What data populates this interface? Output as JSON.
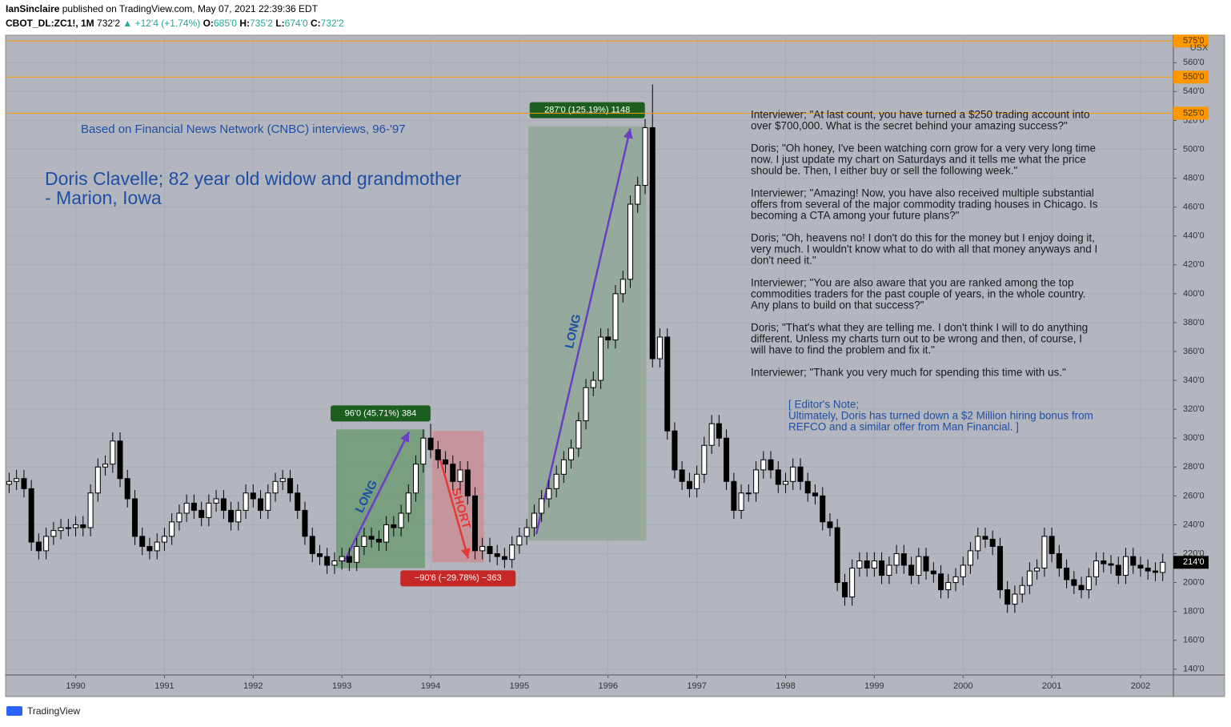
{
  "header": {
    "author": "IanSinclaire",
    "published": "published on TradingView.com, May 07, 2021 22:39:36 EDT",
    "symbol": "CBOT_DL:ZC1!, 1M",
    "price": "732'2",
    "arrow": "▲",
    "change": "+12'4 (+1.74%)",
    "o_key": "O:",
    "o": "685'0",
    "h_key": "H:",
    "h": "735'2",
    "l_key": "L:",
    "l": "674'0",
    "c_key": "C:",
    "c": "732'2"
  },
  "chart_data": {
    "type": "candlestick",
    "currency": "USX",
    "x": [
      1989.25,
      1989.333,
      1989.417,
      1989.5,
      1989.583,
      1989.667,
      1989.75,
      1989.833,
      1989.917,
      1990,
      1990.083,
      1990.167,
      1990.25,
      1990.333,
      1990.417,
      1990.5,
      1990.583,
      1990.667,
      1990.75,
      1990.833,
      1990.917,
      1991,
      1991.083,
      1991.167,
      1991.25,
      1991.333,
      1991.417,
      1991.5,
      1991.583,
      1991.667,
      1991.75,
      1991.833,
      1991.917,
      1992,
      1992.083,
      1992.167,
      1992.25,
      1992.333,
      1992.417,
      1992.5,
      1992.583,
      1992.667,
      1992.75,
      1992.833,
      1992.917,
      1993,
      1993.083,
      1993.167,
      1993.25,
      1993.333,
      1993.417,
      1993.5,
      1993.583,
      1993.667,
      1993.75,
      1993.833,
      1993.917,
      1994,
      1994.083,
      1994.167,
      1994.25,
      1994.333,
      1994.417,
      1994.5,
      1994.583,
      1994.667,
      1994.75,
      1994.833,
      1994.917,
      1995,
      1995.083,
      1995.167,
      1995.25,
      1995.333,
      1995.417,
      1995.5,
      1995.583,
      1995.667,
      1995.75,
      1995.833,
      1995.917,
      1996,
      1996.083,
      1996.167,
      1996.25,
      1996.333,
      1996.417,
      1996.5,
      1996.583,
      1996.667,
      1996.75,
      1996.833,
      1996.917,
      1997,
      1997.083,
      1997.167,
      1997.25,
      1997.333,
      1997.417,
      1997.5,
      1997.583,
      1997.667,
      1997.75,
      1997.833,
      1997.917,
      1998,
      1998.083,
      1998.167,
      1998.25,
      1998.333,
      1998.417,
      1998.5,
      1998.583,
      1998.667,
      1998.75,
      1998.833,
      1998.917,
      1999,
      1999.083,
      1999.167,
      1999.25,
      1999.333,
      1999.417,
      1999.5,
      1999.583,
      1999.667,
      1999.75,
      1999.833,
      1999.917,
      2000,
      2000.083,
      2000.167,
      2000.25,
      2000.333,
      2000.417,
      2000.5,
      2000.583,
      2000.667,
      2000.75,
      2000.833,
      2000.917,
      2001,
      2001.083,
      2001.167,
      2001.25,
      2001.333,
      2001.417,
      2001.5,
      2001.583,
      2001.667,
      2001.75,
      2001.833,
      2001.917,
      2002,
      2002.083,
      2002.167,
      2002.25
    ],
    "open": [
      268,
      270,
      272,
      265,
      228,
      222,
      232,
      236,
      238,
      238,
      240,
      238,
      262,
      280,
      282,
      298,
      272,
      258,
      232,
      225,
      222,
      228,
      232,
      242,
      248,
      255,
      250,
      245,
      255,
      258,
      250,
      242,
      250,
      262,
      258,
      250,
      262,
      270,
      272,
      262,
      250,
      232,
      220,
      218,
      212,
      215,
      218,
      214,
      225,
      232,
      230,
      228,
      240,
      238,
      248,
      262,
      282,
      300,
      292,
      285,
      282,
      270,
      278,
      260,
      222,
      225,
      220,
      218,
      216,
      226,
      232,
      238,
      248,
      258,
      265,
      275,
      285,
      293,
      312,
      335,
      340,
      370,
      368,
      400,
      410,
      462,
      475,
      515,
      355,
      370,
      305,
      278,
      270,
      265,
      275,
      295,
      310,
      300,
      270,
      250,
      262,
      262,
      278,
      285,
      278,
      268,
      270,
      280,
      270,
      262,
      260,
      242,
      238,
      200,
      190,
      210,
      215,
      210,
      215,
      205,
      212,
      220,
      212,
      205,
      218,
      208,
      206,
      195,
      200,
      204,
      212,
      222,
      232,
      230,
      225,
      195,
      185,
      192,
      198,
      208,
      210,
      232,
      220,
      210,
      202,
      198,
      195,
      204,
      215,
      213,
      212,
      205,
      218,
      212,
      210,
      208,
      207
    ],
    "high": [
      276,
      278,
      278,
      271,
      234,
      238,
      242,
      244,
      244,
      246,
      246,
      268,
      286,
      288,
      304,
      304,
      278,
      264,
      238,
      231,
      234,
      238,
      248,
      254,
      261,
      261,
      256,
      261,
      264,
      264,
      256,
      256,
      268,
      268,
      264,
      268,
      276,
      278,
      278,
      268,
      256,
      238,
      226,
      224,
      221,
      224,
      224,
      231,
      238,
      238,
      236,
      246,
      246,
      254,
      268,
      288,
      306,
      310,
      298,
      291,
      288,
      284,
      284,
      266,
      231,
      231,
      226,
      224,
      232,
      238,
      244,
      254,
      264,
      271,
      281,
      291,
      299,
      318,
      341,
      346,
      376,
      376,
      406,
      416,
      468,
      481,
      521,
      545,
      376,
      376,
      311,
      284,
      276,
      281,
      301,
      316,
      316,
      306,
      276,
      268,
      268,
      284,
      291,
      291,
      284,
      276,
      286,
      286,
      276,
      268,
      266,
      248,
      244,
      206,
      216,
      221,
      221,
      221,
      221,
      218,
      226,
      226,
      218,
      224,
      224,
      214,
      212,
      206,
      210,
      218,
      228,
      238,
      238,
      236,
      231,
      201,
      198,
      204,
      214,
      216,
      238,
      238,
      226,
      216,
      208,
      204,
      210,
      221,
      221,
      219,
      218,
      224,
      224,
      218,
      216,
      214,
      220
    ],
    "low": [
      262,
      264,
      259,
      222,
      216,
      216,
      226,
      230,
      232,
      232,
      232,
      232,
      256,
      274,
      276,
      266,
      252,
      226,
      219,
      216,
      216,
      222,
      226,
      236,
      242,
      244,
      239,
      239,
      249,
      244,
      236,
      236,
      244,
      252,
      244,
      244,
      256,
      264,
      256,
      244,
      226,
      214,
      212,
      206,
      206,
      209,
      208,
      208,
      219,
      224,
      222,
      222,
      232,
      232,
      242,
      256,
      276,
      286,
      279,
      276,
      264,
      264,
      254,
      216,
      216,
      214,
      212,
      210,
      210,
      220,
      226,
      232,
      242,
      252,
      259,
      269,
      279,
      287,
      306,
      329,
      334,
      362,
      362,
      394,
      404,
      456,
      469,
      349,
      349,
      299,
      272,
      264,
      259,
      259,
      269,
      289,
      294,
      264,
      244,
      244,
      256,
      256,
      272,
      272,
      262,
      262,
      264,
      264,
      256,
      254,
      236,
      232,
      194,
      184,
      184,
      204,
      204,
      204,
      199,
      199,
      206,
      206,
      199,
      199,
      202,
      200,
      189,
      189,
      194,
      198,
      206,
      216,
      224,
      219,
      189,
      179,
      179,
      186,
      192,
      202,
      204,
      214,
      204,
      196,
      192,
      189,
      189,
      198,
      207,
      206,
      199,
      199,
      206,
      204,
      202,
      201,
      201
    ],
    "close": [
      270,
      272,
      265,
      228,
      222,
      232,
      236,
      238,
      238,
      240,
      238,
      262,
      280,
      282,
      298,
      272,
      258,
      232,
      225,
      222,
      228,
      232,
      242,
      248,
      255,
      250,
      245,
      255,
      258,
      250,
      242,
      250,
      262,
      258,
      250,
      262,
      270,
      272,
      262,
      250,
      232,
      220,
      218,
      212,
      215,
      218,
      214,
      225,
      232,
      230,
      228,
      240,
      238,
      248,
      262,
      282,
      300,
      292,
      285,
      282,
      270,
      278,
      260,
      222,
      225,
      220,
      218,
      216,
      226,
      232,
      238,
      248,
      258,
      265,
      275,
      285,
      293,
      312,
      335,
      340,
      370,
      368,
      400,
      410,
      462,
      475,
      515,
      355,
      370,
      305,
      278,
      270,
      265,
      275,
      295,
      310,
      300,
      270,
      250,
      262,
      262,
      278,
      285,
      278,
      268,
      270,
      280,
      270,
      262,
      260,
      242,
      238,
      200,
      190,
      210,
      215,
      210,
      215,
      205,
      212,
      220,
      212,
      205,
      218,
      208,
      206,
      195,
      200,
      204,
      212,
      222,
      232,
      230,
      225,
      195,
      185,
      192,
      198,
      208,
      210,
      232,
      220,
      210,
      202,
      198,
      195,
      204,
      215,
      213,
      212,
      205,
      218,
      212,
      210,
      208,
      207,
      214
    ],
    "up_color": "#ffffff",
    "down_color": "#000000",
    "xlim": [
      1989.21,
      2002.37
    ],
    "xticks": [
      1990,
      1991,
      1992,
      1993,
      1994,
      1995,
      1996,
      1997,
      1998,
      1999,
      2000,
      2001,
      2002
    ],
    "ylim": [
      136,
      579
    ],
    "yticks": [
      {
        "value": 140,
        "label": "140'0"
      },
      {
        "value": 160,
        "label": "160'0"
      },
      {
        "value": 180,
        "label": "180'0"
      },
      {
        "value": 200,
        "label": "200'0"
      },
      {
        "value": 220,
        "label": "220'0"
      },
      {
        "value": 240,
        "label": "240'0"
      },
      {
        "value": 260,
        "label": "260'0"
      },
      {
        "value": 280,
        "label": "280'0"
      },
      {
        "value": 300,
        "label": "300'0"
      },
      {
        "value": 320,
        "label": "320'0"
      },
      {
        "value": 340,
        "label": "340'0"
      },
      {
        "value": 360,
        "label": "360'0"
      },
      {
        "value": 380,
        "label": "380'0"
      },
      {
        "value": 400,
        "label": "400'0"
      },
      {
        "value": 420,
        "label": "420'0"
      },
      {
        "value": 440,
        "label": "440'0"
      },
      {
        "value": 460,
        "label": "460'0"
      },
      {
        "value": 480,
        "label": "480'0"
      },
      {
        "value": 500,
        "label": "500'0"
      },
      {
        "value": 520,
        "label": "520'0"
      },
      {
        "value": 540,
        "label": "540'0"
      },
      {
        "value": 560,
        "label": "560'0"
      }
    ],
    "grid": true,
    "levels": [
      {
        "value": 575,
        "label": "575'0"
      },
      {
        "value": 550,
        "label": "550'0"
      },
      {
        "value": 525,
        "label": "525'0"
      }
    ],
    "level_color": "#ff9800",
    "last_price": {
      "value": 214,
      "label": "214'0"
    },
    "positions": [
      {
        "side": "LONG",
        "label": "96'0 (45.71%) 384",
        "start": 1992.935,
        "end": 1993.936,
        "top": 306,
        "bottom": 210,
        "color": "#6f9a76"
      },
      {
        "side": "SHORT",
        "label": "−90'6 (−29.78%) −363",
        "start": 1994.017,
        "end": 1994.6,
        "top": 305,
        "bottom": 214,
        "color": "#c98f97"
      },
      {
        "side": "LONG",
        "label": "287'0 (125.19%) 1148",
        "start": 1995.1,
        "end": 1996.43,
        "top": 516,
        "bottom": 229,
        "color": "#8fa896"
      }
    ]
  },
  "annotations": {
    "source": "Based on Financial News Network (CNBC) interviews, 96-'97",
    "headline": [
      "Doris Clavelle; 82 year old widow and grandmother",
      "- Marion, Iowa"
    ],
    "interview": [
      [
        "Interviewer; \"At last count, you have turned a $250 trading account into",
        "over $700,000. What is the secret behind your amazing success?\""
      ],
      [
        "Doris; \"Oh honey, I've been watching corn grow for a very very long time",
        "now. I just update my chart on Saturdays and it tells me what the price",
        "should be. Then, I either buy or sell the following week.\""
      ],
      [
        "Interviewer; \"Amazing! Now, you have also received multiple substantial",
        "offers from several of the major commodity trading houses in Chicago. Is",
        "becoming a CTA among your future plans?\""
      ],
      [
        "Doris; \"Oh, heavens no! I don't do this for the money but I enjoy doing it,",
        "very much. I wouldn't know what to do with all that money anyways and I",
        "don't need it.\""
      ],
      [
        "Interviewer; \"You  are also aware that you are ranked among the top",
        "commodities traders for the past couple of years, in the whole country.",
        "Any plans to build on that success?\""
      ],
      [
        "Doris; \"That's what they are telling me. I don't think I will to do anything",
        "different. Unless my charts turn out to be wrong and then, of course, I",
        "will have to find the problem and fix it.\""
      ],
      [
        "Interviewer; \"Thank you very much for spending this time with us.\""
      ]
    ],
    "editor": [
      "[ Editor's Note;",
      "Ultimately, Doris has turned down a $2 Million hiring bonus from",
      "REFCO and a similar offer from Man Financial. ]"
    ]
  },
  "footer": "TradingView"
}
